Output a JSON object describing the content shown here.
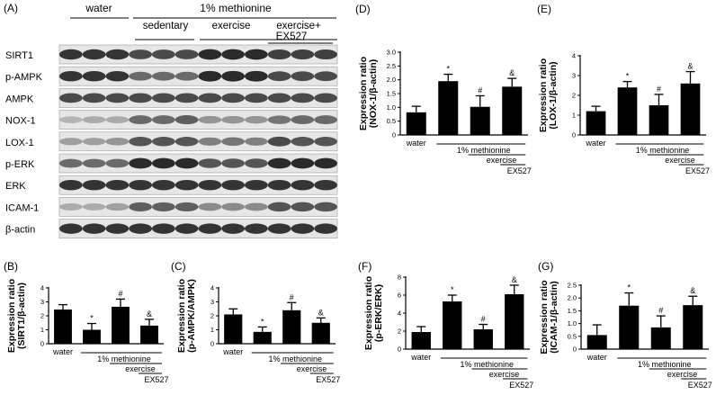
{
  "figure": {
    "blot": {
      "panel_letter": "(A)",
      "group_water": "water",
      "group_meth": "1% methionine",
      "sub_sedentary": "sedentary",
      "sub_exercise": "exercise",
      "sub_exercise_ex_line1": "exercise+",
      "sub_exercise_ex_line2": "EX527",
      "rows": [
        {
          "label": "SIRT1",
          "intensities": [
            0.85,
            0.85,
            0.85,
            0.75,
            0.75,
            0.75,
            0.9,
            0.9,
            0.9,
            0.8,
            0.8,
            0.8
          ]
        },
        {
          "label": "p-AMPK",
          "intensities": [
            0.85,
            0.85,
            0.85,
            0.6,
            0.6,
            0.6,
            0.9,
            0.9,
            0.9,
            0.75,
            0.75,
            0.75
          ]
        },
        {
          "label": "AMPK",
          "intensities": [
            0.75,
            0.75,
            0.75,
            0.75,
            0.75,
            0.75,
            0.75,
            0.75,
            0.75,
            0.75,
            0.75,
            0.75
          ]
        },
        {
          "label": "NOX-1",
          "intensities": [
            0.25,
            0.3,
            0.3,
            0.6,
            0.6,
            0.65,
            0.4,
            0.4,
            0.4,
            0.55,
            0.6,
            0.6
          ]
        },
        {
          "label": "LOX-1",
          "intensities": [
            0.35,
            0.35,
            0.4,
            0.7,
            0.7,
            0.7,
            0.5,
            0.55,
            0.5,
            0.75,
            0.7,
            0.7
          ]
        },
        {
          "label": "p-ERK",
          "intensities": [
            0.6,
            0.6,
            0.6,
            0.9,
            0.9,
            0.9,
            0.7,
            0.7,
            0.7,
            0.9,
            0.9,
            0.9
          ]
        },
        {
          "label": "ERK",
          "intensities": [
            0.85,
            0.85,
            0.85,
            0.85,
            0.85,
            0.85,
            0.85,
            0.85,
            0.85,
            0.85,
            0.85,
            0.85
          ]
        },
        {
          "label": "ICAM-1",
          "intensities": [
            0.3,
            0.3,
            0.35,
            0.65,
            0.65,
            0.65,
            0.45,
            0.45,
            0.45,
            0.7,
            0.7,
            0.7
          ]
        },
        {
          "label": "β-actin",
          "intensities": [
            0.85,
            0.85,
            0.85,
            0.85,
            0.85,
            0.85,
            0.85,
            0.85,
            0.85,
            0.85,
            0.85,
            0.85
          ]
        }
      ]
    }
  },
  "chart_data": [
    {
      "type": "bar",
      "panel_letter": "(B)",
      "ylabel_line1": "Expression ratio",
      "ylabel_line2": "(SIRT1/β-actin)",
      "ylim": [
        0,
        4
      ],
      "yticks": [
        "0",
        "1",
        "2",
        "3",
        "4"
      ],
      "values": [
        2.45,
        1.0,
        2.65,
        1.3
      ],
      "errors": [
        0.35,
        0.45,
        0.55,
        0.45
      ],
      "markers": [
        "",
        "*",
        "#",
        "&"
      ],
      "cat_water": "water",
      "cat_meth": "1% methionine",
      "cat_exercise": "exercise",
      "cat_ex527": "EX527"
    },
    {
      "type": "bar",
      "panel_letter": "(C)",
      "ylabel_line1": "Expression ratio",
      "ylabel_line2": "(p-AMPK/AMPK)",
      "ylim": [
        0,
        4
      ],
      "yticks": [
        "0",
        "1",
        "2",
        "3",
        "4"
      ],
      "values": [
        2.1,
        0.85,
        2.4,
        1.5
      ],
      "errors": [
        0.4,
        0.35,
        0.55,
        0.35
      ],
      "markers": [
        "",
        "*",
        "#",
        "&"
      ],
      "cat_water": "water",
      "cat_meth": "1% methionine",
      "cat_exercise": "exercise",
      "cat_ex527": "EX527"
    },
    {
      "type": "bar",
      "panel_letter": "(D)",
      "ylabel_line1": "Expression ratio",
      "ylabel_line2": "(NOX-1/β-actin)",
      "ylim": [
        0,
        3.0
      ],
      "yticks": [
        "0",
        "0.5",
        "1.0",
        "1.5",
        "2.0",
        "2.5",
        "3.0"
      ],
      "values": [
        0.82,
        1.95,
        1.02,
        1.75
      ],
      "errors": [
        0.22,
        0.25,
        0.4,
        0.3
      ],
      "markers": [
        "",
        "*",
        "#",
        "&"
      ],
      "cat_water": "water",
      "cat_meth": "1% methionine",
      "cat_exercise": "exercise",
      "cat_ex527": "EX527"
    },
    {
      "type": "bar",
      "panel_letter": "(E)",
      "ylabel_line1": "Expression ratio",
      "ylabel_line2": "(LOX-1/β-actin)",
      "ylim": [
        0,
        4
      ],
      "yticks": [
        "0",
        "1",
        "2",
        "3",
        "4"
      ],
      "values": [
        1.2,
        2.4,
        1.5,
        2.6
      ],
      "errors": [
        0.25,
        0.3,
        0.55,
        0.6
      ],
      "markers": [
        "",
        "*",
        "#",
        "&"
      ],
      "cat_water": "water",
      "cat_meth": "1% methionine",
      "cat_exercise": "exercise",
      "cat_ex527": "EX527"
    },
    {
      "type": "bar",
      "panel_letter": "(F)",
      "ylabel_line1": "Expression ratio",
      "ylabel_line2": "(p-ERK/ERK)",
      "ylim": [
        0,
        8
      ],
      "yticks": [
        "0",
        "2",
        "4",
        "6",
        "8"
      ],
      "values": [
        1.9,
        5.3,
        2.2,
        6.1
      ],
      "errors": [
        0.6,
        0.7,
        0.55,
        1.0
      ],
      "markers": [
        "",
        "*",
        "#",
        "&"
      ],
      "cat_water": "water",
      "cat_meth": "1% methionine",
      "cat_exercise": "exercise",
      "cat_ex527": "EX527"
    },
    {
      "type": "bar",
      "panel_letter": "(G)",
      "ylabel_line1": "Expression ratio",
      "ylabel_line2": "(ICAM-1/β-actin)",
      "ylim": [
        0,
        2.5
      ],
      "yticks": [
        "0",
        "0.5",
        "1.0",
        "1.5",
        "2.0",
        "2.5"
      ],
      "values": [
        0.55,
        1.7,
        0.85,
        1.72
      ],
      "errors": [
        0.4,
        0.5,
        0.45,
        0.35
      ],
      "markers": [
        "",
        "*",
        "#",
        "&"
      ],
      "cat_water": "water",
      "cat_meth": "1% methionine",
      "cat_exercise": "exercise",
      "cat_ex527": "EX527"
    }
  ]
}
